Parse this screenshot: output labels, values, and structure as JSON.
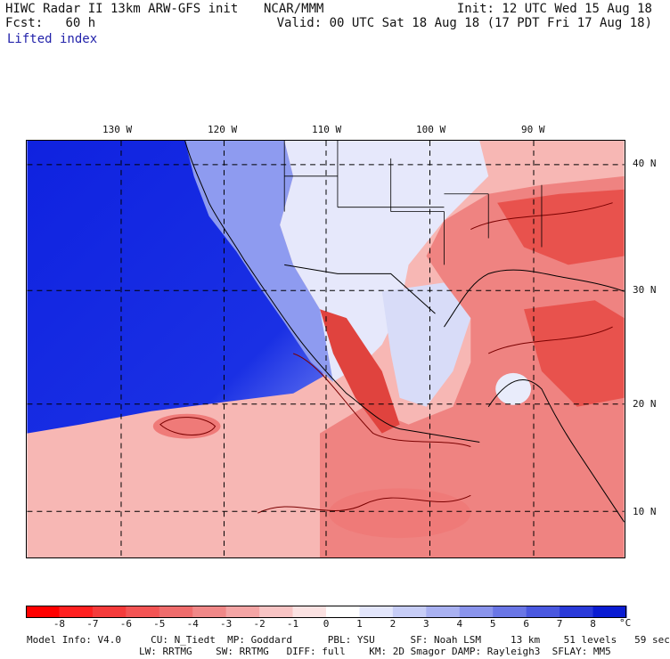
{
  "header": {
    "title": "HIWC Radar II 13km ARW-GFS init",
    "org": "NCAR/MMM",
    "fcst_label": "Fcst:",
    "fcst_value": "60 h",
    "init": "Init: 12 UTC Wed 15 Aug 18",
    "valid": "Valid: 00 UTC Sat 18 Aug 18 (17 PDT Fri 17 Aug 18)",
    "field": "Lifted index"
  },
  "map": {
    "lon_labels": [
      "130 W",
      "120 W",
      "110 W",
      "100 W",
      "90 W"
    ],
    "lat_labels": [
      "40 N",
      "30 N",
      "20 N",
      "10 N"
    ],
    "colors": {
      "ocean_stable": "#1a2ee6",
      "land_neutral": "#e9ecfb",
      "unstable_light": "#f7b5b2",
      "unstable_mid": "#ef7a78",
      "unstable_strong": "#e0453f",
      "contour": "#7a0000",
      "border": "#000000"
    }
  },
  "colorbar": {
    "ticks": [
      "-8",
      "-7",
      "-6",
      "-5",
      "-4",
      "-3",
      "-2",
      "-1",
      "0",
      "1",
      "2",
      "3",
      "4",
      "5",
      "6",
      "7",
      "8"
    ],
    "unit": "°C",
    "colors": [
      "#ff0000",
      "#ff2020",
      "#f53b3b",
      "#f35454",
      "#ef6c6c",
      "#f08888",
      "#f4a5a5",
      "#f8c4c4",
      "#fbe2e2",
      "#ffffff",
      "#e3e6fb",
      "#c7cdf6",
      "#a9b1f1",
      "#8a94ec",
      "#6a76e6",
      "#4a58e0",
      "#2a3ad9",
      "#0a1cd2"
    ]
  },
  "footer": {
    "line1": "Model Info: V4.0     CU: N_Tiedt  MP: Goddard      PBL: YSU      SF: Noah LSM     13 km    51 levels   59 sec",
    "line2": "LW: RRTMG    SW: RRTMG   DIFF: full    KM: 2D Smagor DAMP: Rayleigh3  SFLAY: MM5"
  }
}
